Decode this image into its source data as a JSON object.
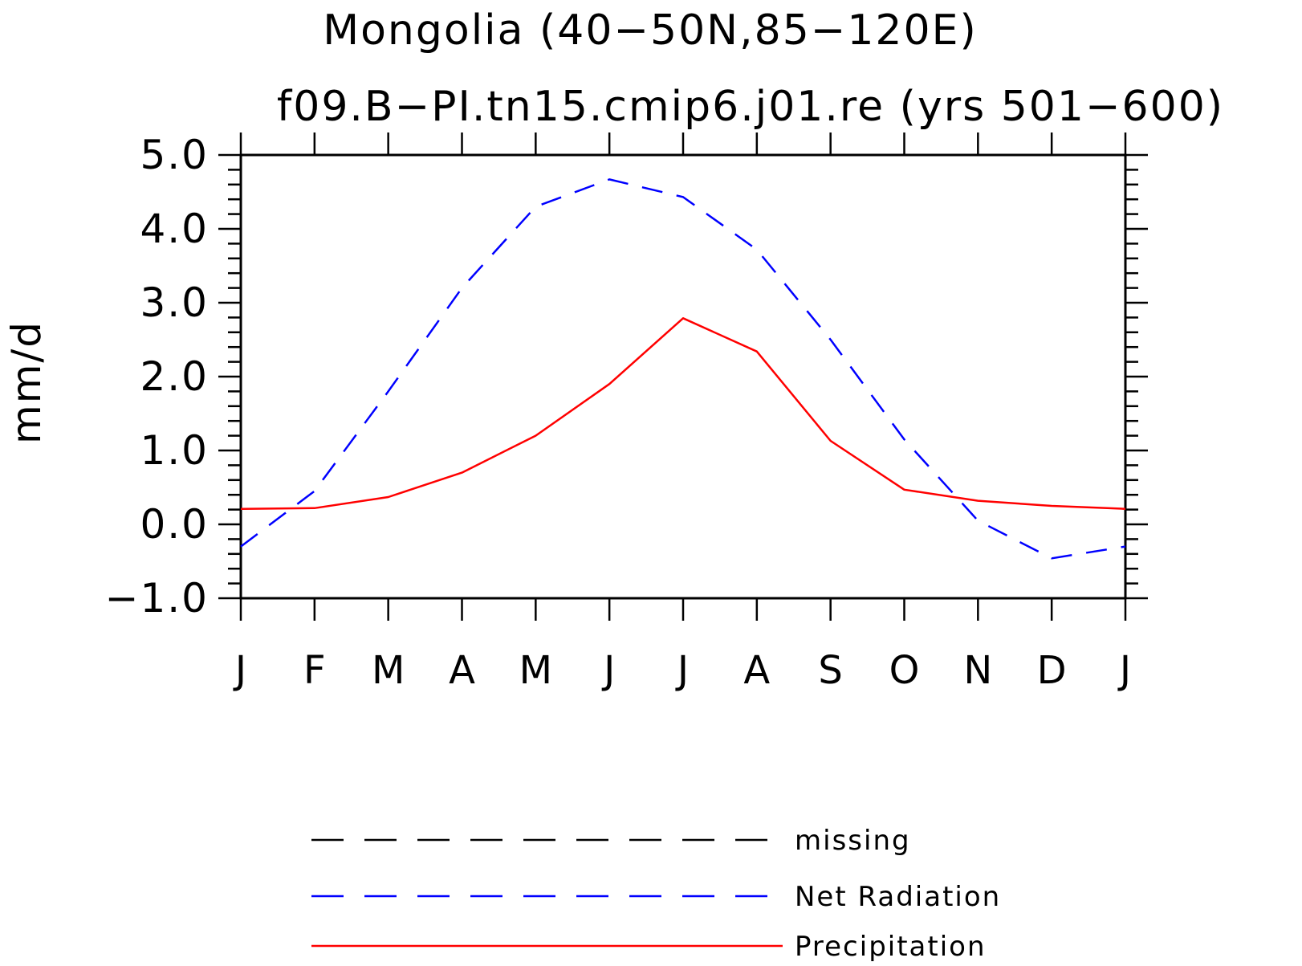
{
  "chart_data": {
    "type": "line",
    "title": "Mongolia (40−50N,85−120E)",
    "subtitle": "f09.B−PI.tn15.cmip6.j01.re (yrs 501−600)",
    "ylabel": "mm/d",
    "xlabel": "",
    "ylim": [
      -1.0,
      5.0
    ],
    "yticks": [
      {
        "value": -1.0,
        "label": "−1.0"
      },
      {
        "value": 0.0,
        "label": "0.0"
      },
      {
        "value": 1.0,
        "label": "1.0"
      },
      {
        "value": 2.0,
        "label": "2.0"
      },
      {
        "value": 3.0,
        "label": "3.0"
      },
      {
        "value": 4.0,
        "label": "4.0"
      },
      {
        "value": 5.0,
        "label": "5.0"
      }
    ],
    "categories": [
      "J",
      "F",
      "M",
      "A",
      "M",
      "J",
      "J",
      "A",
      "S",
      "O",
      "N",
      "D",
      "J"
    ],
    "grid": false,
    "legend_position": "bottom",
    "series": [
      {
        "name": "Net Radiation",
        "color": "#0000ff",
        "style": "dashed",
        "values": [
          -0.3,
          0.45,
          1.8,
          3.2,
          4.3,
          4.67,
          4.43,
          3.72,
          2.5,
          1.15,
          0.05,
          -0.46,
          -0.3
        ]
      },
      {
        "name": "Precipitation",
        "color": "#ff0000",
        "style": "solid",
        "values": [
          0.21,
          0.22,
          0.37,
          0.7,
          1.2,
          1.9,
          2.79,
          2.34,
          1.13,
          0.47,
          0.32,
          0.25,
          0.21
        ]
      }
    ],
    "legend": [
      {
        "label": "missing",
        "color": "#000000",
        "style": "dashed"
      },
      {
        "label": "Net Radiation",
        "color": "#0000ff",
        "style": "dashed"
      },
      {
        "label": "Precipitation",
        "color": "#ff0000",
        "style": "solid"
      }
    ]
  }
}
